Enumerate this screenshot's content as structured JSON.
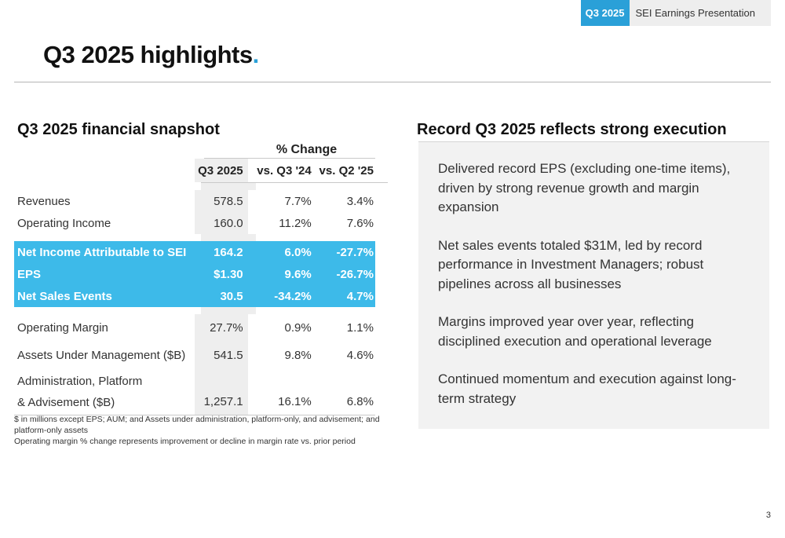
{
  "header": {
    "quarter_tag": "Q3 2025",
    "presentation_name": "SEI Earnings Presentation"
  },
  "title": {
    "text": "Q3 2025 highlights",
    "dot": "."
  },
  "snapshot": {
    "heading": "Q3 2025 financial snapshot",
    "pct_change_label": "% Change",
    "columns": [
      "Q3 2025",
      "vs. Q3 '24",
      "vs. Q2 '25"
    ],
    "rows": [
      {
        "label": "Revenues",
        "q3": "578.5",
        "vs_prior_year": "7.7%",
        "vs_prior_quarter": "3.4%",
        "highlight": false
      },
      {
        "label": "Operating Income",
        "q3": "160.0",
        "vs_prior_year": "11.2%",
        "vs_prior_quarter": "7.6%",
        "highlight": false
      },
      {
        "label": "Net Income Attributable to SEI",
        "q3": "164.2",
        "vs_prior_year": "6.0%",
        "vs_prior_quarter": "-27.7%",
        "highlight": true
      },
      {
        "label": "EPS",
        "q3": "$1.30",
        "vs_prior_year": "9.6%",
        "vs_prior_quarter": "-26.7%",
        "highlight": true
      },
      {
        "label": "Net Sales Events",
        "q3": "30.5",
        "vs_prior_year": "-34.2%",
        "vs_prior_quarter": "4.7%",
        "highlight": true
      },
      {
        "label": "Operating Margin",
        "q3": "27.7%",
        "vs_prior_year": "0.9%",
        "vs_prior_quarter": "1.1%",
        "highlight": false
      },
      {
        "label": "Assets Under Management ($B)",
        "q3": "541.5",
        "vs_prior_year": "9.8%",
        "vs_prior_quarter": "4.6%",
        "highlight": false
      },
      {
        "label_line1": "Administration, Platform",
        "label_line2": "& Advisement ($B)",
        "q3": "1,257.1",
        "vs_prior_year": "16.1%",
        "vs_prior_quarter": "6.8%",
        "highlight": false
      }
    ],
    "footnotes": [
      "$ in millions except EPS; AUM; and Assets under administration, platform-only, and advisement; and platform-only assets",
      "Operating margin % change represents improvement or decline in margin rate vs. prior period"
    ]
  },
  "execution": {
    "heading": "Record Q3 2025 reflects strong execution",
    "bullets": [
      "Delivered record EPS (excluding one-time items), driven by strong revenue growth and margin expansion",
      "Net sales events totaled $31M, led by record performance in Investment Managers; robust pipelines across all businesses",
      "Margins improved year over year, reflecting disciplined execution and operational leverage",
      "Continued momentum and execution against long-term strategy"
    ]
  },
  "page_number": "3",
  "colors": {
    "accent": "#2aa0d8",
    "highlight_row": "#3dbae9",
    "panel_bg": "#f2f2f2",
    "column_shade": "#eeeeee"
  }
}
